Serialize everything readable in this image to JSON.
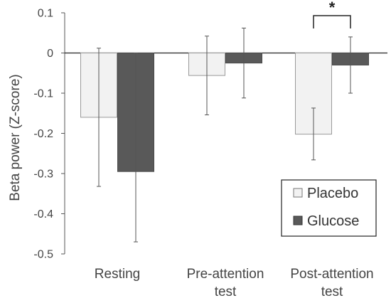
{
  "chart_data": {
    "type": "bar",
    "title": "",
    "xlabel": "",
    "ylabel": "Beta power (Z-score)",
    "ylim": [
      -0.5,
      0.1
    ],
    "yticks": [
      0.1,
      0,
      -0.1,
      -0.2,
      -0.3,
      -0.4,
      -0.5
    ],
    "ytick_labels": [
      "0.1",
      "0",
      "-0.1",
      "-0.2",
      "-0.3",
      "-0.4",
      "-0.5"
    ],
    "categories": [
      [
        "Resting"
      ],
      [
        "Pre-attention",
        "test"
      ],
      [
        "Post-attention",
        "test"
      ]
    ],
    "series": [
      {
        "name": "Placebo",
        "color": "#f2f2f2",
        "values": [
          -0.16,
          -0.056,
          -0.202
        ],
        "error_low": [
          -0.332,
          -0.154,
          -0.266
        ],
        "error_high": [
          0.012,
          0.042,
          -0.137
        ]
      },
      {
        "name": "Glucose",
        "color": "#595959",
        "values": [
          -0.295,
          -0.025,
          -0.03
        ],
        "error_low": [
          -0.47,
          -0.112,
          -0.1
        ],
        "error_high": [
          0.0,
          0.062,
          0.04
        ]
      }
    ],
    "legend": {
      "position": "bottom-right"
    },
    "grid": false,
    "annotations": [
      {
        "type": "significance",
        "text": "*",
        "category_index": 2
      }
    ]
  }
}
